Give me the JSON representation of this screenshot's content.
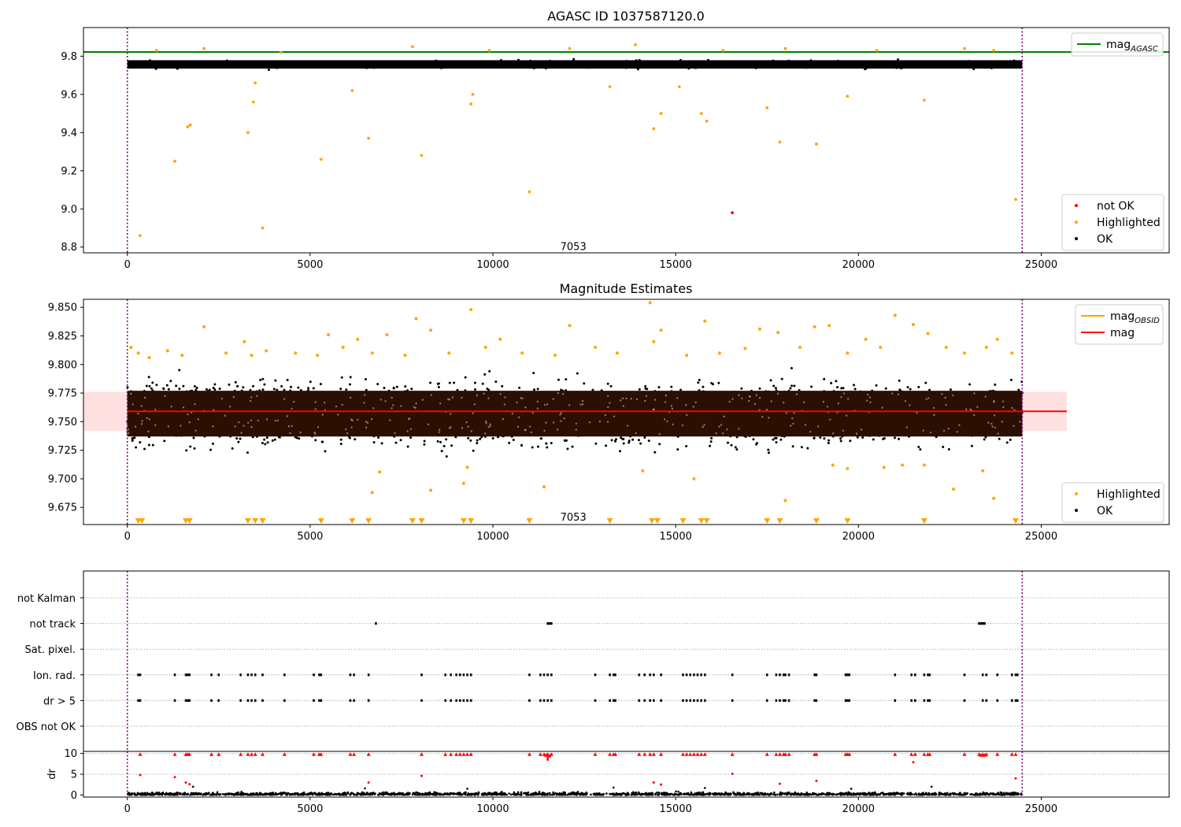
{
  "chart_data": [
    {
      "type": "scatter",
      "title": "AGASC ID 1037587120.0",
      "xlabel": "",
      "ylabel": "",
      "xlim": [
        -1200,
        28500
      ],
      "ylim": [
        8.77,
        9.95
      ],
      "xticks": [
        0,
        5000,
        10000,
        15000,
        20000,
        25000
      ],
      "xtick_labels": [
        "0",
        "5000",
        "10000",
        "15000",
        "20000",
        "25000"
      ],
      "yticks": [
        8.8,
        9.0,
        9.2,
        9.4,
        9.6,
        9.8
      ],
      "ytick_labels": [
        "8.8",
        "9.0",
        "9.2",
        "9.4",
        "9.6",
        "9.8"
      ],
      "vlines": [
        0,
        24480
      ],
      "annotation": {
        "x": 12200,
        "y": 8.805,
        "text": "7053"
      },
      "hline": {
        "name": "mag_AGASC",
        "y": 9.822,
        "color": "#008000"
      },
      "ok_band": {
        "center": 9.757,
        "half_width": 0.022,
        "x_range": [
          0,
          24480
        ],
        "color": "#000000"
      },
      "series": [
        {
          "name": "Highlighted",
          "color": "#ffa500",
          "x": [
            350,
            1300,
            1650,
            1720,
            3300,
            3450,
            3500,
            3700,
            5300,
            6150,
            6600,
            8050,
            9400,
            9450,
            11000,
            13200,
            14400,
            14600,
            15100,
            15700,
            15850,
            17500,
            17850,
            18850,
            19700,
            21800,
            24300,
            800,
            2100,
            4200,
            7800,
            9900,
            12100,
            13900,
            16300,
            18000,
            20500,
            22900,
            23700
          ],
          "y": [
            8.86,
            9.25,
            9.43,
            9.44,
            9.4,
            9.56,
            9.66,
            8.9,
            9.26,
            9.62,
            9.37,
            9.28,
            9.55,
            9.6,
            9.09,
            9.64,
            9.42,
            9.5,
            9.64,
            9.5,
            9.46,
            9.53,
            9.35,
            9.34,
            9.59,
            9.57,
            9.05,
            9.83,
            9.84,
            9.82,
            9.85,
            9.83,
            9.84,
            9.86,
            9.83,
            9.84,
            9.83,
            9.84,
            9.83
          ]
        },
        {
          "name": "not OK",
          "color": "#ff0000",
          "x": [
            16550
          ],
          "y": [
            8.98
          ]
        }
      ],
      "legends": [
        {
          "position": "upper-right",
          "entries": [
            {
              "label": "mag",
              "subscript": "AGASC",
              "kind": "line",
              "color": "#008000"
            }
          ]
        },
        {
          "position": "lower-right",
          "entries": [
            {
              "label": "not OK",
              "kind": "marker",
              "color": "#ff0000"
            },
            {
              "label": "Highlighted",
              "kind": "marker",
              "color": "#ffa500"
            },
            {
              "label": "OK",
              "kind": "marker",
              "color": "#000000"
            }
          ]
        }
      ]
    },
    {
      "type": "scatter",
      "title": "Magnitude Estimates",
      "xlabel": "",
      "ylabel": "",
      "xlim": [
        -1200,
        28500
      ],
      "ylim": [
        9.66,
        9.857
      ],
      "xticks": [
        0,
        5000,
        10000,
        15000,
        20000,
        25000
      ],
      "xtick_labels": [
        "0",
        "5000",
        "10000",
        "15000",
        "20000",
        "25000"
      ],
      "yticks": [
        9.675,
        9.7,
        9.725,
        9.75,
        9.775,
        9.8,
        9.825,
        9.85
      ],
      "ytick_labels": [
        "9.675",
        "9.700",
        "9.725",
        "9.750",
        "9.775",
        "9.800",
        "9.825",
        "9.850"
      ],
      "vlines": [
        0,
        24480
      ],
      "annotation": {
        "x": 12200,
        "y": 9.664,
        "text": "7053"
      },
      "mag_line": {
        "name": "mag",
        "y": 9.759,
        "x_range": [
          0,
          25700
        ],
        "color": "#ff0000"
      },
      "mag_band": {
        "y_low": 9.742,
        "y_high": 9.776,
        "x_range": [
          -1200,
          25700
        ],
        "color": "#ffcccc"
      },
      "mag_obsid_color": "#ffa500",
      "ok_core": {
        "center": 9.757,
        "half_width": 0.02,
        "color": "#2a0f02"
      },
      "ok_scatter_range": [
        9.713,
        9.803
      ],
      "series": [
        {
          "name": "Highlighted",
          "color": "#ffa500",
          "x": [
            100,
            300,
            600,
            1100,
            1500,
            2100,
            2700,
            3200,
            3400,
            3800,
            4600,
            5200,
            5500,
            5900,
            6300,
            6700,
            7100,
            7600,
            7900,
            8300,
            8800,
            9400,
            9800,
            10200,
            10800,
            11700,
            12100,
            12800,
            13400,
            14300,
            14400,
            14600,
            15300,
            15800,
            16200,
            16900,
            17300,
            17800,
            18400,
            18800,
            19200,
            19700,
            20200,
            20600,
            21000,
            21500,
            21900,
            22400,
            22900,
            23500,
            23800,
            24200,
            6900,
            6700,
            8300,
            9200,
            9300,
            11400,
            14100,
            15500,
            18000,
            19300,
            19700,
            20700,
            21200,
            21800,
            22600,
            23400,
            23700
          ],
          "y": [
            9.815,
            9.81,
            9.806,
            9.812,
            9.808,
            9.833,
            9.81,
            9.82,
            9.808,
            9.812,
            9.81,
            9.808,
            9.826,
            9.815,
            9.822,
            9.81,
            9.826,
            9.808,
            9.84,
            9.83,
            9.81,
            9.848,
            9.815,
            9.822,
            9.81,
            9.808,
            9.834,
            9.815,
            9.81,
            9.854,
            9.82,
            9.83,
            9.808,
            9.838,
            9.81,
            9.814,
            9.831,
            9.828,
            9.815,
            9.833,
            9.834,
            9.81,
            9.822,
            9.815,
            9.843,
            9.835,
            9.827,
            9.815,
            9.81,
            9.815,
            9.822,
            9.81,
            9.706,
            9.688,
            9.69,
            9.696,
            9.71,
            9.693,
            9.707,
            9.7,
            9.681,
            9.712,
            9.709,
            9.71,
            9.712,
            9.712,
            9.691,
            9.707,
            9.683
          ]
        },
        {
          "name": "Highlighted (below axis)",
          "color": "#ffa500",
          "x": [
            300,
            400,
            1600,
            1700,
            3300,
            3500,
            3700,
            5300,
            6150,
            6600,
            7800,
            8050,
            9200,
            9400,
            11000,
            13200,
            14350,
            14500,
            15200,
            15700,
            15850,
            17500,
            17850,
            18850,
            19700,
            21800,
            24300
          ],
          "y": [
            9.6625,
            9.6625,
            9.6625,
            9.6625,
            9.6625,
            9.6625,
            9.6625,
            9.6625,
            9.6625,
            9.6625,
            9.6625,
            9.6625,
            9.6625,
            9.6625,
            9.6625,
            9.6625,
            9.6625,
            9.6625,
            9.6625,
            9.6625,
            9.6625,
            9.6625,
            9.6625,
            9.6625,
            9.6625,
            9.6625,
            9.6625
          ]
        }
      ],
      "legends": [
        {
          "position": "upper-right",
          "entries": [
            {
              "label": "mag",
              "subscript": "OBSID",
              "kind": "line",
              "color": "#ffa500"
            },
            {
              "label": "mag",
              "kind": "line",
              "color": "#ff0000"
            }
          ]
        },
        {
          "position": "lower-right",
          "entries": [
            {
              "label": "Highlighted",
              "kind": "marker",
              "color": "#ffa500"
            },
            {
              "label": "OK",
              "kind": "marker",
              "color": "#000000"
            }
          ]
        }
      ]
    },
    {
      "type": "scatter",
      "title": "",
      "xlabel": "",
      "ylabel": "",
      "xlim": [
        -1200,
        28500
      ],
      "categories": [
        "not Kalman",
        "not track",
        "Sat. pixel.",
        "Ion. rad.",
        "dr > 5",
        "OBS not OK"
      ],
      "vlines": [
        0,
        24480
      ],
      "flags": {
        "not Kalman": [],
        "not track": [
          6800,
          11500,
          11550,
          11600,
          23300,
          23350,
          23400,
          23450
        ],
        "Sat. pixel.": [],
        "Ion. rad.": [
          300,
          350,
          1300,
          1600,
          1650,
          1700,
          2300,
          2500,
          3100,
          3300,
          3400,
          3500,
          3700,
          4300,
          5100,
          5250,
          5300,
          6100,
          6200,
          6600,
          8050,
          8700,
          8850,
          9000,
          9100,
          9200,
          9300,
          9400,
          11000,
          11300,
          11400,
          11500,
          11600,
          12800,
          13200,
          13300,
          13350,
          14000,
          14150,
          14300,
          14400,
          14600,
          15200,
          15300,
          15400,
          15500,
          15600,
          15700,
          15800,
          16550,
          17500,
          17750,
          17850,
          17950,
          18000,
          18100,
          18800,
          18850,
          19650,
          19700,
          19750,
          21000,
          21450,
          21550,
          21800,
          21900,
          21950,
          22900,
          23400,
          23500,
          23800,
          24200,
          24300,
          24350
        ],
        "dr > 5": [
          300,
          350,
          1300,
          1600,
          1650,
          1700,
          2300,
          2500,
          3100,
          3300,
          3400,
          3500,
          3700,
          4300,
          5100,
          5250,
          5300,
          6100,
          6200,
          6600,
          8050,
          8700,
          8850,
          9000,
          9100,
          9200,
          9300,
          9400,
          11000,
          11300,
          11400,
          11500,
          11600,
          12800,
          13200,
          13300,
          13350,
          14000,
          14150,
          14300,
          14400,
          14600,
          15200,
          15300,
          15400,
          15500,
          15600,
          15700,
          15800,
          16550,
          17500,
          17750,
          17850,
          17950,
          18000,
          18100,
          18800,
          18850,
          19650,
          19700,
          19750,
          21000,
          21450,
          21550,
          21800,
          21900,
          21950,
          22900,
          23400,
          23500,
          23800,
          24200,
          24300,
          24350
        ],
        "OBS not OK": []
      },
      "flag_color": "#000000"
    },
    {
      "type": "scatter",
      "title": "",
      "xlabel": "",
      "ylabel": "dr",
      "xlim": [
        -1200,
        28500
      ],
      "ylim": [
        -0.5,
        10.5
      ],
      "xticks": [
        0,
        5000,
        10000,
        15000,
        20000,
        25000
      ],
      "xtick_labels": [
        "0",
        "5000",
        "10000",
        "15000",
        "20000",
        "25000"
      ],
      "yticks": [
        0,
        5,
        10
      ],
      "ytick_labels": [
        "0",
        "5",
        "10"
      ],
      "vlines": [
        0,
        24480
      ],
      "ok_range": [
        0,
        1.1
      ],
      "series": [
        {
          "name": "dr > 5",
          "color": "#ff0000",
          "marker": "triangle",
          "x": [
            350,
            1300,
            1600,
            1650,
            1700,
            2300,
            2500,
            3100,
            3300,
            3400,
            3500,
            3700,
            4300,
            5100,
            5250,
            5300,
            6100,
            6200,
            6600,
            8050,
            8700,
            8850,
            9000,
            9100,
            9200,
            9300,
            9400,
            11000,
            11300,
            11400,
            11450,
            11500,
            11550,
            11600,
            12800,
            13200,
            13300,
            13350,
            14000,
            14150,
            14300,
            14400,
            14600,
            15200,
            15300,
            15400,
            15500,
            15600,
            15700,
            15800,
            16550,
            17500,
            17750,
            17850,
            17950,
            18000,
            18100,
            18800,
            18850,
            19650,
            19700,
            19750,
            21000,
            21450,
            21550,
            21800,
            21900,
            21950,
            22900,
            23300,
            23350,
            23400,
            23450,
            23500,
            23800,
            24200,
            24300
          ],
          "y": [
            9.8,
            9.8,
            9.8,
            9.8,
            9.8,
            9.8,
            9.8,
            9.8,
            9.8,
            9.8,
            9.8,
            9.8,
            9.8,
            9.8,
            9.8,
            9.8,
            9.8,
            9.8,
            9.8,
            9.8,
            9.8,
            9.8,
            9.8,
            9.8,
            9.8,
            9.8,
            9.8,
            9.8,
            9.8,
            9.8,
            9.6,
            9.8,
            9.4,
            9.8,
            9.8,
            9.8,
            9.8,
            9.8,
            9.8,
            9.8,
            9.8,
            9.8,
            9.8,
            9.8,
            9.8,
            9.8,
            9.8,
            9.8,
            9.8,
            9.8,
            9.8,
            9.8,
            9.8,
            9.8,
            9.8,
            9.8,
            9.8,
            9.8,
            9.8,
            9.8,
            9.8,
            9.8,
            9.8,
            9.8,
            9.8,
            9.8,
            9.8,
            9.8,
            9.8,
            9.8,
            9.6,
            9.8,
            9.6,
            9.8,
            9.8,
            9.8,
            9.8
          ]
        },
        {
          "name": "dr intermediate",
          "color": "#ff0000",
          "x": [
            350,
            1300,
            1600,
            1700,
            6600,
            8050,
            11500,
            14400,
            14600,
            16550,
            17850,
            18850,
            21500,
            24300,
            11500
          ],
          "y": [
            4.8,
            4.3,
            3.0,
            2.6,
            3.0,
            4.6,
            8.5,
            3.0,
            2.5,
            5.1,
            2.7,
            3.4,
            7.9,
            4.0,
            9.0
          ]
        },
        {
          "name": "OK",
          "color": "#000000",
          "x": [
            1800,
            6500,
            9300,
            13300,
            15800,
            19800,
            22000
          ],
          "y": [
            2.0,
            1.6,
            1.5,
            1.8,
            1.7,
            1.5,
            2.0
          ]
        }
      ]
    }
  ]
}
